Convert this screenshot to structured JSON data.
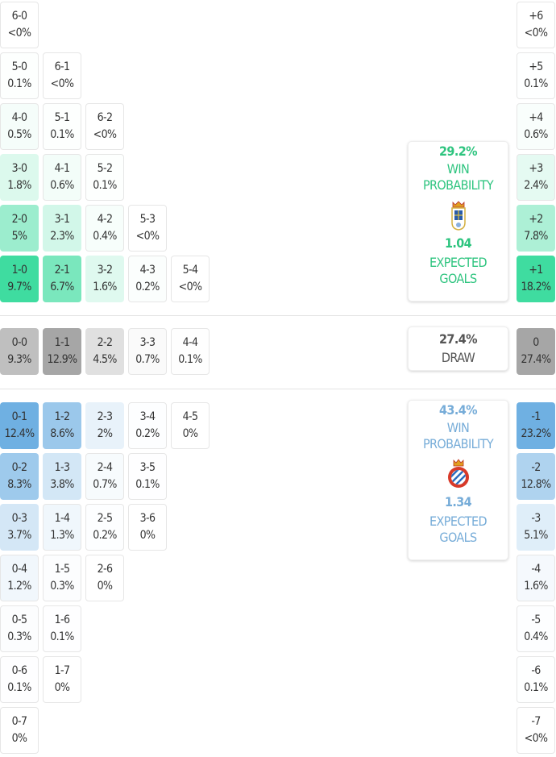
{
  "colors": {
    "home": "#3fdca0",
    "draw": "#a6a6a6",
    "away": "#6fb0e2",
    "home_text": "#2ec47f",
    "away_text": "#76acd8",
    "draw_text": "#555555"
  },
  "home": {
    "rows": [
      [
        [
          "6-0",
          "<0%"
        ]
      ],
      [
        [
          "5-0",
          "0.1%"
        ],
        [
          "6-1",
          "<0%"
        ]
      ],
      [
        [
          "4-0",
          "0.5%"
        ],
        [
          "5-1",
          "0.1%"
        ],
        [
          "6-2",
          "<0%"
        ]
      ],
      [
        [
          "3-0",
          "1.8%"
        ],
        [
          "4-1",
          "0.6%"
        ],
        [
          "5-2",
          "0.1%"
        ]
      ],
      [
        [
          "2-0",
          "5%"
        ],
        [
          "3-1",
          "2.3%"
        ],
        [
          "4-2",
          "0.4%"
        ],
        [
          "5-3",
          "<0%"
        ]
      ],
      [
        [
          "1-0",
          "9.7%"
        ],
        [
          "2-1",
          "6.7%"
        ],
        [
          "3-2",
          "1.6%"
        ],
        [
          "4-3",
          "0.2%"
        ],
        [
          "5-4",
          "<0%"
        ]
      ]
    ],
    "margins": [
      [
        "+6",
        "<0%"
      ],
      [
        "+5",
        "0.1%"
      ],
      [
        "+4",
        "0.6%"
      ],
      [
        "+3",
        "2.4%"
      ],
      [
        "+2",
        "7.8%"
      ],
      [
        "+1",
        "18.2%"
      ]
    ],
    "summary": {
      "win_pct": "29.2%",
      "win_label_1": "WIN",
      "win_label_2": "PROBABILITY",
      "xg": "1.04",
      "xg_label_1": "EXPECTED",
      "xg_label_2": "GOALS",
      "crest": "real-oviedo-crest-icon"
    }
  },
  "draw": {
    "rows": [
      [
        [
          "0-0",
          "9.3%"
        ],
        [
          "1-1",
          "12.9%"
        ],
        [
          "2-2",
          "4.5%"
        ],
        [
          "3-3",
          "0.7%"
        ],
        [
          "4-4",
          "0.1%"
        ]
      ]
    ],
    "margins": [
      [
        "0",
        "27.4%"
      ]
    ],
    "summary": {
      "pct": "27.4%",
      "label": "DRAW"
    }
  },
  "away": {
    "rows": [
      [
        [
          "0-1",
          "12.4%"
        ],
        [
          "1-2",
          "8.6%"
        ],
        [
          "2-3",
          "2%"
        ],
        [
          "3-4",
          "0.2%"
        ],
        [
          "4-5",
          "0%"
        ]
      ],
      [
        [
          "0-2",
          "8.3%"
        ],
        [
          "1-3",
          "3.8%"
        ],
        [
          "2-4",
          "0.7%"
        ],
        [
          "3-5",
          "0.1%"
        ]
      ],
      [
        [
          "0-3",
          "3.7%"
        ],
        [
          "1-4",
          "1.3%"
        ],
        [
          "2-5",
          "0.2%"
        ],
        [
          "3-6",
          "0%"
        ]
      ],
      [
        [
          "0-4",
          "1.2%"
        ],
        [
          "1-5",
          "0.3%"
        ],
        [
          "2-6",
          "0%"
        ]
      ],
      [
        [
          "0-5",
          "0.3%"
        ],
        [
          "1-6",
          "0.1%"
        ]
      ],
      [
        [
          "0-6",
          "0.1%"
        ],
        [
          "1-7",
          "0%"
        ]
      ],
      [
        [
          "0-7",
          "0%"
        ]
      ]
    ],
    "margins": [
      [
        "-1",
        "23.2%"
      ],
      [
        "-2",
        "12.8%"
      ],
      [
        "-3",
        "5.1%"
      ],
      [
        "-4",
        "1.6%"
      ],
      [
        "-5",
        "0.4%"
      ],
      [
        "-6",
        "0.1%"
      ],
      [
        "-7",
        "<0%"
      ]
    ],
    "summary": {
      "win_pct": "43.4%",
      "win_label_1": "WIN",
      "win_label_2": "PROBABILITY",
      "xg": "1.34",
      "xg_label_1": "EXPECTED",
      "xg_label_2": "GOALS",
      "crest": "espanyol-crest-icon"
    }
  }
}
